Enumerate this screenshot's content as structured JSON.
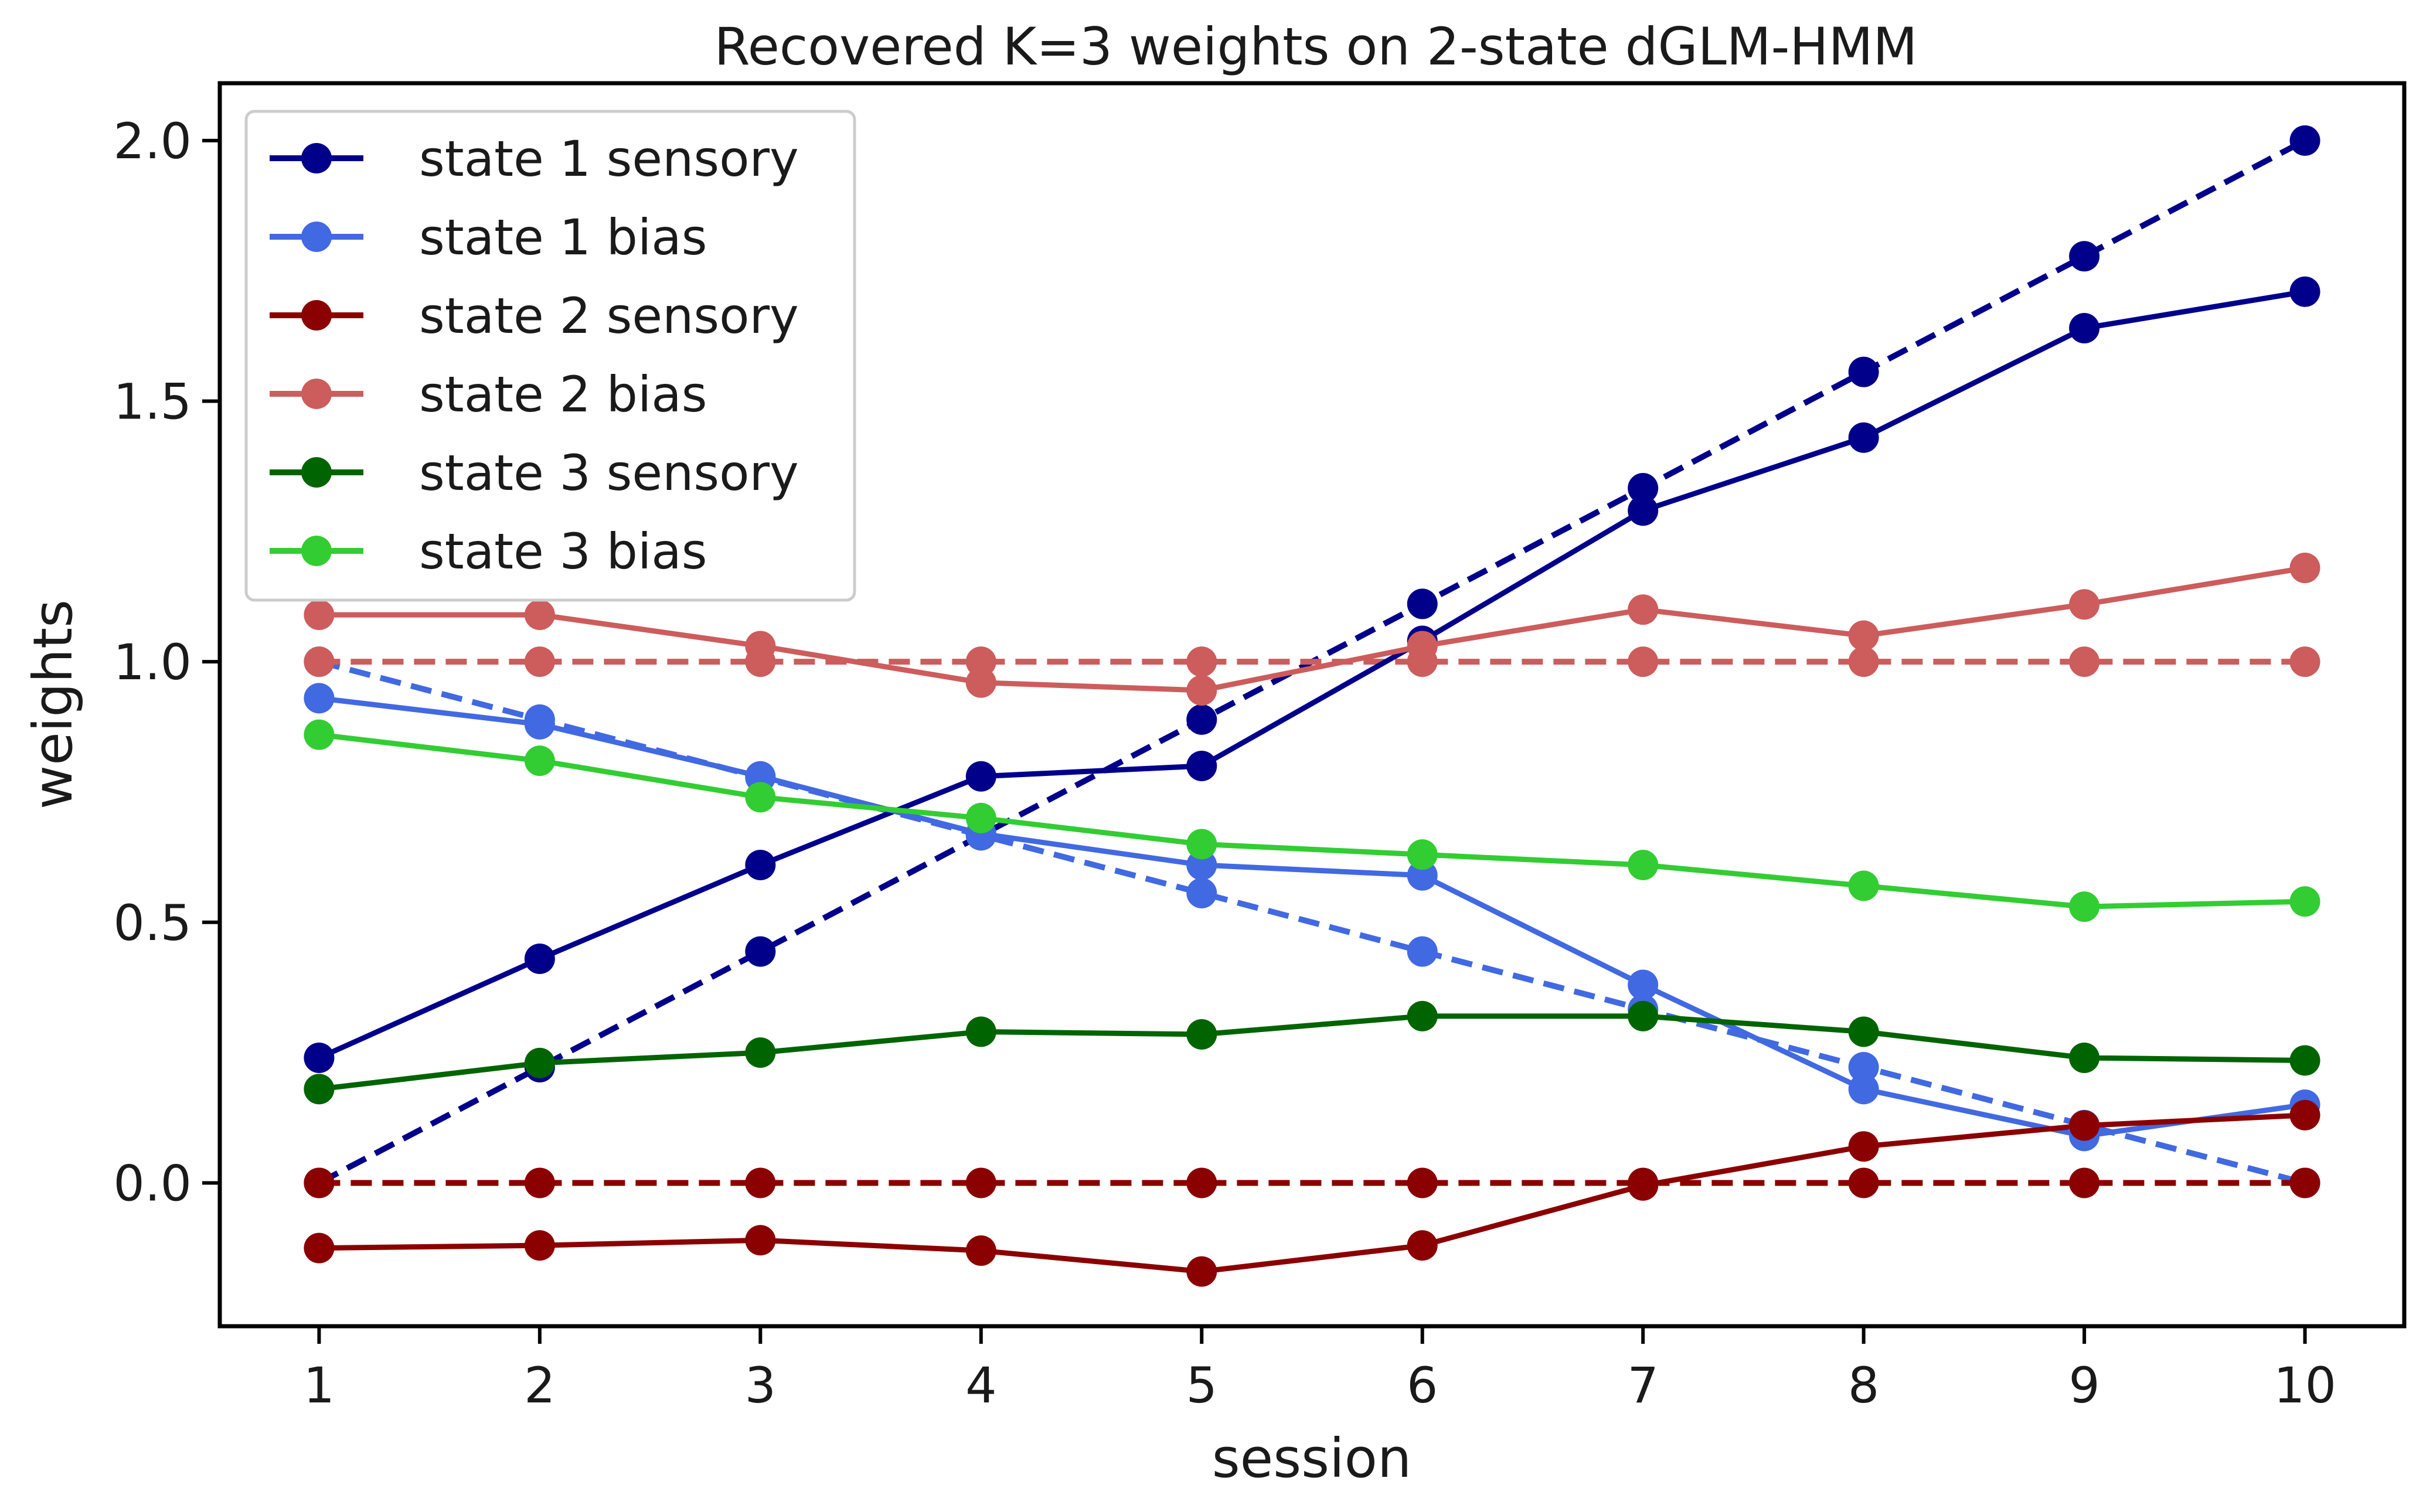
{
  "chart_data": {
    "type": "line",
    "title": "Recovered K=3 weights on 2-state dGLM-HMM",
    "xlabel": "session",
    "ylabel": "weights",
    "x": [
      1,
      2,
      3,
      4,
      5,
      6,
      7,
      8,
      9,
      10
    ],
    "xlim": [
      0.55,
      10.45
    ],
    "ylim": [
      -0.275,
      2.11
    ],
    "xticks": [
      1,
      2,
      3,
      4,
      5,
      6,
      7,
      8,
      9,
      10
    ],
    "yticks": [
      0.0,
      0.5,
      1.0,
      1.5,
      2.0
    ],
    "ytick_labels": [
      "0.0",
      "0.5",
      "1.0",
      "1.5",
      "2.0"
    ],
    "grid": false,
    "legend_position": "top-left",
    "series": [
      {
        "name": "state 1 sensory",
        "color": "#00008b",
        "style": "solid",
        "legend": true,
        "values": [
          0.24,
          0.43,
          0.61,
          0.78,
          0.8,
          1.04,
          1.29,
          1.43,
          1.64,
          1.71
        ]
      },
      {
        "name": "state 1 bias",
        "color": "#4169e1",
        "style": "solid",
        "legend": true,
        "values": [
          0.93,
          0.88,
          0.78,
          0.67,
          0.61,
          0.59,
          0.38,
          0.18,
          0.09,
          0.15
        ]
      },
      {
        "name": "state 2 sensory",
        "color": "#8b0000",
        "style": "solid",
        "legend": true,
        "values": [
          -0.125,
          -0.12,
          -0.11,
          -0.13,
          -0.17,
          -0.12,
          -0.005,
          0.07,
          0.11,
          0.13
        ]
      },
      {
        "name": "state 2 bias",
        "color": "#cd5c5c",
        "style": "solid",
        "legend": true,
        "values": [
          1.09,
          1.09,
          1.03,
          0.96,
          0.945,
          1.03,
          1.1,
          1.05,
          1.11,
          1.18
        ]
      },
      {
        "name": "state 3 sensory",
        "color": "#006400",
        "style": "solid",
        "legend": true,
        "values": [
          0.18,
          0.23,
          0.25,
          0.29,
          0.285,
          0.32,
          0.32,
          0.29,
          0.24,
          0.235
        ]
      },
      {
        "name": "state 3 bias",
        "color": "#32cd32",
        "style": "solid",
        "legend": true,
        "values": [
          0.86,
          0.81,
          0.74,
          0.7,
          0.65,
          0.63,
          0.61,
          0.57,
          0.53,
          0.54
        ]
      },
      {
        "name": "",
        "color": "#00008b",
        "style": "dashed",
        "legend": false,
        "values": [
          0.0,
          0.222,
          0.444,
          0.667,
          0.889,
          1.111,
          1.333,
          1.556,
          1.778,
          2.0
        ]
      },
      {
        "name": "",
        "color": "#4169e1",
        "style": "dashed",
        "legend": false,
        "values": [
          1.0,
          0.889,
          0.778,
          0.667,
          0.556,
          0.444,
          0.333,
          0.222,
          0.111,
          0.0
        ]
      },
      {
        "name": "",
        "color": "#8b0000",
        "style": "dashed",
        "legend": false,
        "values": [
          0,
          0,
          0,
          0,
          0,
          0,
          0,
          0,
          0,
          0
        ]
      },
      {
        "name": "",
        "color": "#cd5c5c",
        "style": "dashed",
        "legend": false,
        "values": [
          1,
          1,
          1,
          1,
          1,
          1,
          1,
          1,
          1,
          1
        ]
      }
    ]
  }
}
